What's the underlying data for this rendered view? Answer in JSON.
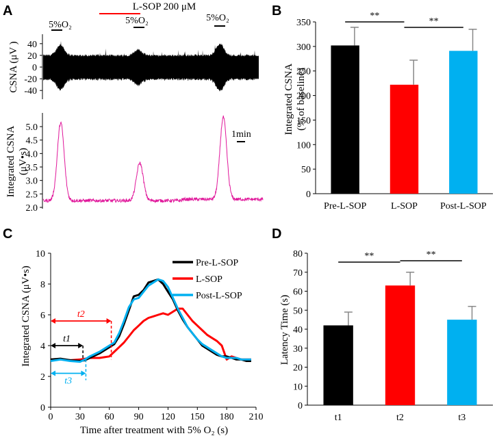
{
  "panels": [
    "A",
    "B",
    "C",
    "D"
  ],
  "colors": {
    "pre": "#000000",
    "lsop": "#ff0000",
    "post": "#00b0f0",
    "integrated": "#e0169a",
    "sig": "#000000"
  },
  "chart_data": [
    {
      "panel": "A-top",
      "type": "line",
      "ylabel": "CSNA (μV )",
      "yticks": [
        "40",
        "20",
        "0",
        "-20",
        "-40"
      ],
      "ylim": [
        -55,
        55
      ],
      "treatment_label": "L-SOP 200 μM",
      "hypoxia_labels": [
        "5%O₂",
        "5%O₂",
        "5%O₂"
      ],
      "burst_times": [
        0.08,
        0.44,
        0.82
      ]
    },
    {
      "panel": "A-bottom",
      "type": "line",
      "ylabel": "Integrated CSNA\n(μV•s)",
      "yticks": [
        "5.0",
        "4.5",
        "4.0",
        "3.5",
        "3.0",
        "2.5",
        "2.0"
      ],
      "ylim": [
        2.0,
        5.5
      ],
      "scale_bar_label": "1min",
      "peaks": [
        {
          "t": 0.08,
          "value": 5.15
        },
        {
          "t": 0.44,
          "value": 3.65
        },
        {
          "t": 0.82,
          "value": 5.35
        }
      ],
      "baseline": [
        2.25,
        2.2,
        2.3
      ]
    },
    {
      "panel": "B",
      "type": "bar",
      "ylabel": "Integrated CSNA\n(% of baseline)",
      "categories": [
        "Pre-L-SOP",
        "L-SOP",
        "Post-L-SOP"
      ],
      "values": [
        302,
        222,
        291
      ],
      "errors": [
        37,
        50,
        44
      ],
      "ylim": [
        0,
        350
      ],
      "yticks": [
        "0",
        "50",
        "100",
        "150",
        "200",
        "250",
        "300",
        "350"
      ],
      "significance": [
        {
          "from": 0,
          "to": 1,
          "label": "**"
        },
        {
          "from": 1,
          "to": 2,
          "label": "**"
        }
      ]
    },
    {
      "panel": "C",
      "type": "line",
      "xlabel": "Time after treatment with 5% O₂ (s)",
      "ylabel": "Integrated CSNA   (μV•s)",
      "xticks": [
        "0",
        "30",
        "60",
        "90",
        "120",
        "150",
        "180",
        "210"
      ],
      "yticks": [
        "0",
        "2",
        "4",
        "6",
        "8",
        "10"
      ],
      "xlim": [
        0,
        210
      ],
      "ylim": [
        0,
        10
      ],
      "legend": [
        "Pre-L-SOP",
        "L-SOP",
        "Post-L-SOP"
      ],
      "annotations": [
        {
          "label": "t1",
          "start": 0,
          "end": 33,
          "y": 4.0
        },
        {
          "label": "t2",
          "start": 0,
          "end": 62,
          "y": 5.6
        },
        {
          "label": "t3",
          "start": 0,
          "end": 36,
          "y": 2.2
        }
      ],
      "series": [
        {
          "name": "Pre-L-SOP",
          "x": [
            0,
            10,
            20,
            30,
            35,
            40,
            50,
            60,
            65,
            70,
            75,
            80,
            85,
            90,
            95,
            100,
            105,
            110,
            115,
            120,
            125,
            130,
            135,
            140,
            145,
            150,
            155,
            160,
            165,
            170,
            175,
            180,
            185,
            190,
            195,
            200,
            205
          ],
          "y": [
            3.1,
            3.15,
            3.05,
            3.0,
            3.05,
            3.2,
            3.5,
            3.9,
            4.1,
            4.6,
            5.4,
            6.3,
            7.2,
            7.3,
            7.6,
            8.1,
            8.2,
            8.3,
            8.0,
            7.5,
            7.0,
            6.3,
            5.7,
            5.2,
            4.8,
            4.4,
            4.0,
            3.8,
            3.6,
            3.4,
            3.3,
            3.3,
            3.2,
            3.1,
            3.1,
            3.0,
            3.0
          ]
        },
        {
          "name": "L-SOP",
          "x": [
            0,
            10,
            20,
            30,
            40,
            50,
            55,
            60,
            65,
            70,
            75,
            80,
            85,
            90,
            95,
            100,
            105,
            110,
            115,
            120,
            125,
            130,
            135,
            140,
            145,
            150,
            155,
            160,
            165,
            170,
            175,
            180,
            185,
            190,
            195,
            200,
            205
          ],
          "y": [
            3.1,
            3.1,
            3.05,
            3.1,
            3.2,
            3.2,
            3.25,
            3.3,
            3.6,
            3.9,
            4.2,
            4.6,
            5.0,
            5.3,
            5.6,
            5.8,
            5.9,
            6.0,
            6.1,
            6.0,
            6.2,
            6.4,
            6.4,
            6.0,
            5.6,
            5.3,
            5.0,
            4.7,
            4.5,
            4.3,
            4.0,
            3.1,
            3.3,
            3.2,
            3.1,
            3.1,
            3.1
          ]
        },
        {
          "name": "Post-L-SOP",
          "x": [
            0,
            10,
            20,
            30,
            35,
            40,
            50,
            60,
            65,
            70,
            75,
            80,
            85,
            90,
            95,
            100,
            105,
            110,
            115,
            120,
            125,
            130,
            135,
            140,
            145,
            150,
            155,
            160,
            165,
            170,
            175,
            180,
            185,
            190,
            195,
            200,
            205
          ],
          "y": [
            3.0,
            3.1,
            3.0,
            2.95,
            3.1,
            3.3,
            3.6,
            4.0,
            4.2,
            4.8,
            5.6,
            6.5,
            7.0,
            7.1,
            7.5,
            7.9,
            8.1,
            8.3,
            8.2,
            7.8,
            7.1,
            6.4,
            5.8,
            5.2,
            4.8,
            4.4,
            4.1,
            3.9,
            3.7,
            3.5,
            3.3,
            3.2,
            3.2,
            3.2,
            3.1,
            3.1,
            3.1
          ]
        }
      ]
    },
    {
      "panel": "D",
      "type": "bar",
      "ylabel": "Latency Time (s)",
      "categories": [
        "t1",
        "t2",
        "t3"
      ],
      "values": [
        42,
        63,
        45
      ],
      "errors": [
        7,
        7,
        7
      ],
      "ylim": [
        0,
        80
      ],
      "yticks": [
        "0",
        "10",
        "20",
        "30",
        "40",
        "50",
        "60",
        "70",
        "80"
      ],
      "significance": [
        {
          "from": 0,
          "to": 1,
          "label": "**"
        },
        {
          "from": 1,
          "to": 2,
          "label": "**"
        }
      ]
    }
  ]
}
